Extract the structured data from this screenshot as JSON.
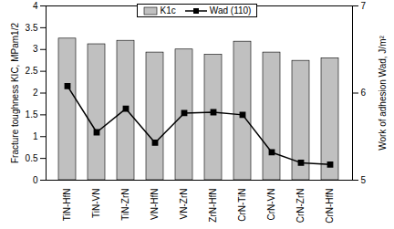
{
  "chart_data": {
    "type": "bar",
    "categories": [
      "TiN-HfN",
      "TiN-VN",
      "TiN-ZrN",
      "VN-HfN",
      "VN-ZrN",
      "ZrN-HfN",
      "CrN-TiN",
      "CrN-VN",
      "CrN-ZrN",
      "CrN-HfN"
    ],
    "series": [
      {
        "name": "K1c",
        "type": "bar",
        "color": "#c0c0c0",
        "values": [
          3.25,
          3.12,
          3.2,
          2.93,
          3.0,
          2.88,
          3.18,
          2.93,
          2.74,
          2.8
        ]
      },
      {
        "name": "Wad (110)",
        "type": "line",
        "color": "#000000",
        "marker": "square",
        "axis": "y2",
        "values": [
          6.08,
          5.55,
          5.82,
          5.43,
          5.77,
          5.78,
          5.75,
          5.32,
          5.2,
          5.18
        ]
      }
    ],
    "ylabel": "Fracture toughness KIC, MPam1/2",
    "y2label": "Work of adhesion Wad, J/m²",
    "ylim": [
      0,
      4
    ],
    "yticks": [
      0,
      0.5,
      1,
      1.5,
      2,
      2.5,
      3,
      3.5,
      4
    ],
    "y2lim": [
      5,
      7
    ],
    "y2ticks": [
      5,
      6,
      7
    ],
    "legend": "top"
  }
}
